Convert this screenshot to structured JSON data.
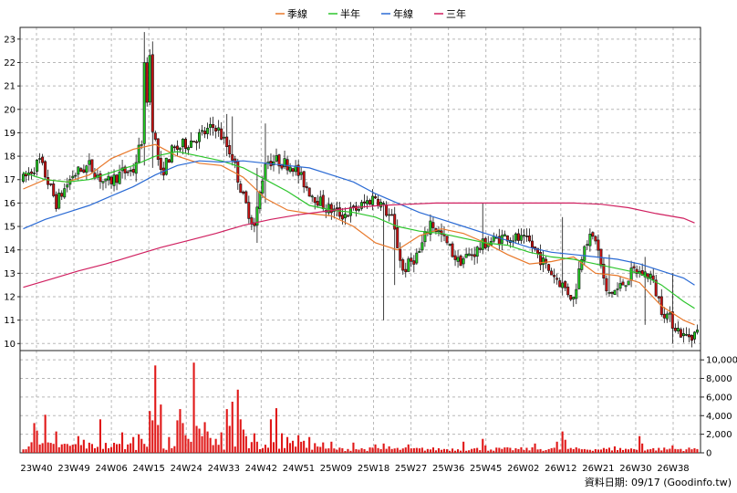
{
  "chart_data": {
    "type": "candlestick",
    "legend": {
      "placement": "top-center",
      "items": [
        {
          "label": "季線",
          "color": "#e8782a"
        },
        {
          "label": "半年",
          "color": "#2cc52c"
        },
        {
          "label": "年線",
          "color": "#2a6ad4"
        },
        {
          "label": "三年",
          "color": "#d02060"
        }
      ]
    },
    "price_axis": {
      "range": [
        9.7,
        23.5
      ],
      "ticks": [
        "10",
        "11",
        "12",
        "13",
        "14",
        "15",
        "16",
        "17",
        "18",
        "19",
        "20",
        "21",
        "22",
        "23"
      ]
    },
    "volume_axis": {
      "range": [
        0,
        11000
      ],
      "ticks": [
        "10,000",
        "8,000",
        "6,000",
        "4,000",
        "2,000",
        "0"
      ]
    },
    "x_labels": [
      "23W40",
      "23W49",
      "24W06",
      "24W15",
      "24W24",
      "24W33",
      "24W42",
      "24W51",
      "25W09",
      "25W18",
      "25W27",
      "25W36",
      "25W45",
      "26W02",
      "26W12",
      "26W21",
      "26W30",
      "26W38"
    ],
    "source": "資料日期: 09/17  (Goodinfo.tw)",
    "grid": true,
    "colors": {
      "up": "#22cc22",
      "down": "#cc1111",
      "volume": "#e01818"
    },
    "moving_averages": {
      "季線": [
        [
          0,
          16.6
        ],
        [
          8,
          17.0
        ],
        [
          16,
          16.9
        ],
        [
          24,
          17.2
        ],
        [
          32,
          17.9
        ],
        [
          40,
          18.3
        ],
        [
          48,
          18.5
        ],
        [
          56,
          18.0
        ],
        [
          64,
          17.7
        ],
        [
          72,
          17.6
        ],
        [
          80,
          17.1
        ],
        [
          88,
          16.2
        ],
        [
          96,
          15.7
        ],
        [
          104,
          15.55
        ],
        [
          112,
          15.45
        ],
        [
          120,
          15.0
        ],
        [
          128,
          14.3
        ],
        [
          136,
          14.0
        ],
        [
          144,
          14.6
        ],
        [
          152,
          14.9
        ],
        [
          160,
          14.7
        ],
        [
          168,
          14.3
        ],
        [
          176,
          13.8
        ],
        [
          184,
          13.4
        ],
        [
          192,
          13.5
        ],
        [
          200,
          13.7
        ],
        [
          208,
          13.0
        ],
        [
          216,
          12.9
        ],
        [
          224,
          12.6
        ],
        [
          232,
          11.6
        ],
        [
          240,
          11.0
        ],
        [
          244,
          10.8
        ]
      ],
      "半年": [
        [
          0,
          17.3
        ],
        [
          8,
          17.0
        ],
        [
          16,
          16.9
        ],
        [
          24,
          17.0
        ],
        [
          32,
          17.3
        ],
        [
          40,
          17.6
        ],
        [
          48,
          18.0
        ],
        [
          56,
          18.2
        ],
        [
          64,
          18.0
        ],
        [
          72,
          17.8
        ],
        [
          80,
          17.5
        ],
        [
          88,
          17.0
        ],
        [
          96,
          16.5
        ],
        [
          104,
          15.9
        ],
        [
          112,
          15.7
        ],
        [
          120,
          15.6
        ],
        [
          128,
          15.4
        ],
        [
          136,
          15.0
        ],
        [
          144,
          14.8
        ],
        [
          152,
          14.7
        ],
        [
          160,
          14.5
        ],
        [
          168,
          14.3
        ],
        [
          176,
          14.2
        ],
        [
          184,
          13.9
        ],
        [
          192,
          13.7
        ],
        [
          200,
          13.6
        ],
        [
          208,
          13.4
        ],
        [
          216,
          13.2
        ],
        [
          224,
          13.0
        ],
        [
          232,
          12.5
        ],
        [
          240,
          11.8
        ],
        [
          244,
          11.5
        ]
      ],
      "年線": [
        [
          0,
          14.9
        ],
        [
          8,
          15.3
        ],
        [
          16,
          15.6
        ],
        [
          24,
          15.9
        ],
        [
          32,
          16.3
        ],
        [
          40,
          16.7
        ],
        [
          48,
          17.2
        ],
        [
          56,
          17.6
        ],
        [
          64,
          17.8
        ],
        [
          72,
          17.75
        ],
        [
          80,
          17.8
        ],
        [
          88,
          17.7
        ],
        [
          96,
          17.6
        ],
        [
          104,
          17.5
        ],
        [
          112,
          17.2
        ],
        [
          120,
          16.9
        ],
        [
          128,
          16.4
        ],
        [
          136,
          16.0
        ],
        [
          144,
          15.6
        ],
        [
          152,
          15.3
        ],
        [
          160,
          15.0
        ],
        [
          168,
          14.7
        ],
        [
          176,
          14.4
        ],
        [
          184,
          14.1
        ],
        [
          192,
          13.9
        ],
        [
          200,
          13.8
        ],
        [
          208,
          13.7
        ],
        [
          216,
          13.6
        ],
        [
          224,
          13.4
        ],
        [
          232,
          13.1
        ],
        [
          240,
          12.8
        ],
        [
          244,
          12.5
        ]
      ],
      "三年": [
        [
          0,
          12.4
        ],
        [
          10,
          12.75
        ],
        [
          20,
          13.1
        ],
        [
          30,
          13.4
        ],
        [
          40,
          13.75
        ],
        [
          50,
          14.1
        ],
        [
          60,
          14.4
        ],
        [
          70,
          14.7
        ],
        [
          80,
          15.05
        ],
        [
          90,
          15.3
        ],
        [
          100,
          15.5
        ],
        [
          110,
          15.65
        ],
        [
          120,
          15.8
        ],
        [
          130,
          15.9
        ],
        [
          140,
          15.95
        ],
        [
          150,
          16.0
        ],
        [
          160,
          16.0
        ],
        [
          170,
          16.0
        ],
        [
          180,
          16.0
        ],
        [
          190,
          16.0
        ],
        [
          200,
          16.0
        ],
        [
          210,
          15.95
        ],
        [
          220,
          15.8
        ],
        [
          230,
          15.55
        ],
        [
          240,
          15.35
        ],
        [
          244,
          15.15
        ]
      ]
    }
  }
}
